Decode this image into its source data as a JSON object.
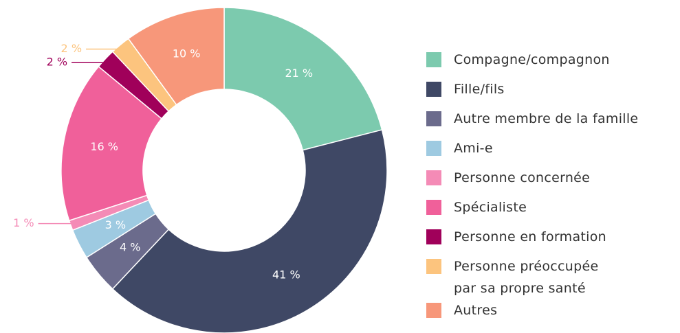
{
  "chart_data": {
    "type": "donut",
    "categories": [
      "Compagne/compagnon",
      "Fille/fils",
      "Autre membre de la famille",
      "Ami-e",
      "Personne concernée",
      "Spécialiste",
      "Personne en formation",
      "Personne préoccupée\npar sa propre santé",
      "Autres"
    ],
    "values": [
      21,
      41,
      4,
      3,
      1,
      16,
      2,
      2,
      10
    ],
    "value_labels": [
      "21 %",
      "41 %",
      "4 %",
      "3 %",
      "1 %",
      "16 %",
      "2 %",
      "2 %",
      "10 %"
    ],
    "colors": [
      "#7ccaae",
      "#3f4865",
      "#6b6b8c",
      "#9ecae1",
      "#f48bb6",
      "#f0609a",
      "#a0005a",
      "#fcc47e",
      "#f7977a"
    ],
    "legend": "right"
  }
}
